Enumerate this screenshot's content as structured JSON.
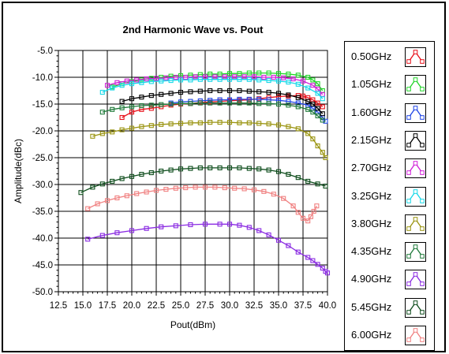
{
  "chart_data": {
    "type": "line",
    "title": "2nd Harmonic Wave vs. Pout",
    "xlabel": "Pout(dBm)",
    "ylabel": "Amplitude(dBc)",
    "xlim": [
      12.5,
      40.0
    ],
    "ylim": [
      -50.0,
      -5.0
    ],
    "x_ticks": [
      "12.5",
      "15.0",
      "17.5",
      "20.0",
      "22.5",
      "25.0",
      "27.5",
      "30.0",
      "32.5",
      "35.0",
      "37.5",
      "40.0"
    ],
    "y_ticks": [
      "-5.0",
      "-10.0",
      "-15.0",
      "-20.0",
      "-25.0",
      "-30.0",
      "-35.0",
      "-40.0",
      "-45.0",
      "-50.0"
    ],
    "grid": true,
    "legend_position": "right",
    "series": [
      {
        "name": "0.50GHz",
        "color": "#e8101a",
        "points": [
          [
            19.0,
            -17.5
          ],
          [
            20.0,
            -16.5
          ],
          [
            21.0,
            -16.0
          ],
          [
            22.0,
            -15.8
          ],
          [
            23.0,
            -15.5
          ],
          [
            24.0,
            -15.2
          ],
          [
            25.0,
            -15.0
          ],
          [
            26.0,
            -14.9
          ],
          [
            27.0,
            -14.7
          ],
          [
            28.0,
            -14.6
          ],
          [
            29.0,
            -14.5
          ],
          [
            30.0,
            -14.4
          ],
          [
            31.0,
            -14.3
          ],
          [
            32.0,
            -14.2
          ],
          [
            33.0,
            -14.0
          ],
          [
            34.0,
            -13.8
          ],
          [
            35.0,
            -13.6
          ],
          [
            36.0,
            -13.5
          ],
          [
            37.0,
            -13.4
          ],
          [
            37.5,
            -13.5
          ],
          [
            38.0,
            -13.8
          ],
          [
            38.5,
            -14.2
          ],
          [
            39.0,
            -14.8
          ],
          [
            39.5,
            -15.5
          ]
        ]
      },
      {
        "name": "1.05GHz",
        "color": "#22d42a",
        "points": [
          [
            18.0,
            -11.8
          ],
          [
            19.0,
            -11.2
          ],
          [
            20.0,
            -10.8
          ],
          [
            21.0,
            -10.5
          ],
          [
            22.0,
            -10.2
          ],
          [
            23.0,
            -10.0
          ],
          [
            24.0,
            -9.8
          ],
          [
            25.0,
            -9.7
          ],
          [
            26.0,
            -9.6
          ],
          [
            27.0,
            -9.5
          ],
          [
            28.0,
            -9.4
          ],
          [
            29.0,
            -9.4
          ],
          [
            30.0,
            -9.3
          ],
          [
            31.0,
            -9.3
          ],
          [
            32.0,
            -9.2
          ],
          [
            33.0,
            -9.2
          ],
          [
            34.0,
            -9.2
          ],
          [
            35.0,
            -9.3
          ],
          [
            36.0,
            -9.4
          ],
          [
            37.0,
            -9.6
          ],
          [
            38.0,
            -10.0
          ],
          [
            38.5,
            -10.5
          ],
          [
            39.0,
            -11.2
          ],
          [
            39.5,
            -12.5
          ]
        ]
      },
      {
        "name": "1.60GHz",
        "color": "#1f45e6",
        "points": [
          [
            24.0,
            -14.8
          ],
          [
            25.0,
            -14.6
          ],
          [
            26.0,
            -14.5
          ],
          [
            27.0,
            -14.4
          ],
          [
            28.0,
            -14.3
          ],
          [
            29.0,
            -14.2
          ],
          [
            30.0,
            -14.2
          ],
          [
            31.0,
            -14.1
          ],
          [
            32.0,
            -14.1
          ],
          [
            33.0,
            -14.1
          ],
          [
            34.0,
            -14.2
          ],
          [
            35.0,
            -14.3
          ],
          [
            36.0,
            -14.5
          ],
          [
            37.0,
            -14.8
          ],
          [
            38.0,
            -15.2
          ],
          [
            38.5,
            -15.8
          ],
          [
            39.0,
            -16.5
          ],
          [
            39.5,
            -17.5
          ],
          [
            39.8,
            -18.2
          ]
        ]
      },
      {
        "name": "2.15GHz",
        "color": "#000000",
        "points": [
          [
            19.0,
            -14.5
          ],
          [
            20.0,
            -14.0
          ],
          [
            21.0,
            -13.7
          ],
          [
            22.0,
            -13.4
          ],
          [
            23.0,
            -13.2
          ],
          [
            24.0,
            -13.0
          ],
          [
            25.0,
            -12.8
          ],
          [
            26.0,
            -12.7
          ],
          [
            27.0,
            -12.6
          ],
          [
            28.0,
            -12.5
          ],
          [
            29.0,
            -12.5
          ],
          [
            30.0,
            -12.5
          ],
          [
            31.0,
            -12.5
          ],
          [
            32.0,
            -12.6
          ],
          [
            33.0,
            -12.7
          ],
          [
            34.0,
            -12.8
          ],
          [
            35.0,
            -13.0
          ],
          [
            36.0,
            -13.3
          ],
          [
            37.0,
            -13.8
          ],
          [
            38.0,
            -14.5
          ],
          [
            38.5,
            -15.0
          ],
          [
            39.0,
            -15.8
          ],
          [
            39.5,
            -16.8
          ]
        ]
      },
      {
        "name": "2.70GHz",
        "color": "#d020d8",
        "points": [
          [
            17.5,
            -11.5
          ],
          [
            18.5,
            -11.0
          ],
          [
            19.5,
            -10.7
          ],
          [
            20.5,
            -10.5
          ],
          [
            21.5,
            -10.3
          ],
          [
            22.5,
            -10.2
          ],
          [
            23.5,
            -10.1
          ],
          [
            24.5,
            -10.0
          ],
          [
            25.5,
            -10.0
          ],
          [
            26.5,
            -9.9
          ],
          [
            27.5,
            -9.9
          ],
          [
            28.5,
            -9.9
          ],
          [
            29.5,
            -9.9
          ],
          [
            30.5,
            -9.9
          ],
          [
            31.5,
            -9.9
          ],
          [
            32.5,
            -9.9
          ],
          [
            33.5,
            -10.0
          ],
          [
            34.5,
            -10.0
          ],
          [
            35.5,
            -10.1
          ],
          [
            36.5,
            -10.3
          ],
          [
            37.5,
            -10.7
          ],
          [
            38.5,
            -11.5
          ],
          [
            39.0,
            -12.2
          ],
          [
            39.5,
            -13.2
          ]
        ]
      },
      {
        "name": "3.25GHz",
        "color": "#18d8e8",
        "points": [
          [
            17.0,
            -12.8
          ],
          [
            18.0,
            -12.0
          ],
          [
            19.0,
            -11.5
          ],
          [
            20.0,
            -11.2
          ],
          [
            21.0,
            -11.0
          ],
          [
            22.0,
            -10.8
          ],
          [
            23.0,
            -10.7
          ],
          [
            24.0,
            -10.6
          ],
          [
            25.0,
            -10.5
          ],
          [
            26.0,
            -10.5
          ],
          [
            27.0,
            -10.4
          ],
          [
            28.0,
            -10.4
          ],
          [
            29.0,
            -10.4
          ],
          [
            30.0,
            -10.4
          ],
          [
            31.0,
            -10.4
          ],
          [
            32.0,
            -10.4
          ],
          [
            33.0,
            -10.5
          ],
          [
            34.0,
            -10.6
          ],
          [
            35.0,
            -10.7
          ],
          [
            36.0,
            -10.9
          ],
          [
            37.0,
            -11.3
          ],
          [
            38.0,
            -12.0
          ],
          [
            39.0,
            -13.0
          ],
          [
            39.5,
            -14.0
          ]
        ]
      },
      {
        "name": "3.80GHz",
        "color": "#9a9410",
        "points": [
          [
            16.0,
            -21.0
          ],
          [
            17.0,
            -20.5
          ],
          [
            18.0,
            -20.2
          ],
          [
            19.0,
            -19.8
          ],
          [
            20.0,
            -19.5
          ],
          [
            21.0,
            -19.2
          ],
          [
            22.0,
            -19.0
          ],
          [
            23.0,
            -18.8
          ],
          [
            24.0,
            -18.7
          ],
          [
            25.0,
            -18.6
          ],
          [
            26.0,
            -18.5
          ],
          [
            27.0,
            -18.5
          ],
          [
            28.0,
            -18.4
          ],
          [
            29.0,
            -18.4
          ],
          [
            30.0,
            -18.4
          ],
          [
            31.0,
            -18.5
          ],
          [
            32.0,
            -18.5
          ],
          [
            33.0,
            -18.6
          ],
          [
            34.0,
            -18.7
          ],
          [
            35.0,
            -18.9
          ],
          [
            36.0,
            -19.2
          ],
          [
            37.0,
            -19.6
          ],
          [
            38.0,
            -20.5
          ],
          [
            38.5,
            -21.5
          ],
          [
            39.0,
            -22.8
          ],
          [
            39.5,
            -24.0
          ],
          [
            39.8,
            -25.0
          ]
        ]
      },
      {
        "name": "4.35GHz",
        "color": "#1f7a3a",
        "points": [
          [
            17.0,
            -16.5
          ],
          [
            18.0,
            -16.0
          ],
          [
            19.0,
            -15.7
          ],
          [
            20.0,
            -15.5
          ],
          [
            21.0,
            -15.3
          ],
          [
            22.0,
            -15.2
          ],
          [
            23.0,
            -15.1
          ],
          [
            24.0,
            -15.0
          ],
          [
            25.0,
            -14.9
          ],
          [
            26.0,
            -14.9
          ],
          [
            27.0,
            -14.8
          ],
          [
            28.0,
            -14.8
          ],
          [
            29.0,
            -14.8
          ],
          [
            30.0,
            -14.8
          ],
          [
            31.0,
            -14.8
          ],
          [
            32.0,
            -14.8
          ],
          [
            33.0,
            -14.9
          ],
          [
            34.0,
            -14.9
          ],
          [
            35.0,
            -15.0
          ],
          [
            36.0,
            -15.2
          ],
          [
            37.0,
            -15.5
          ],
          [
            38.0,
            -16.0
          ],
          [
            38.5,
            -16.5
          ],
          [
            39.0,
            -17.2
          ],
          [
            39.5,
            -18.0
          ]
        ]
      },
      {
        "name": "4.90GHz",
        "color": "#8a2be2",
        "points": [
          [
            15.5,
            -40.2
          ],
          [
            17.0,
            -39.5
          ],
          [
            18.5,
            -39.0
          ],
          [
            20.0,
            -38.6
          ],
          [
            21.5,
            -38.2
          ],
          [
            23.0,
            -37.9
          ],
          [
            24.5,
            -37.7
          ],
          [
            26.0,
            -37.5
          ],
          [
            27.5,
            -37.4
          ],
          [
            29.0,
            -37.4
          ],
          [
            30.0,
            -37.4
          ],
          [
            31.0,
            -37.6
          ],
          [
            32.0,
            -38.0
          ],
          [
            33.0,
            -38.6
          ],
          [
            34.0,
            -39.4
          ],
          [
            35.0,
            -40.4
          ],
          [
            36.0,
            -41.4
          ],
          [
            37.0,
            -42.6
          ],
          [
            38.0,
            -43.6
          ],
          [
            38.5,
            -44.2
          ],
          [
            39.0,
            -44.9
          ],
          [
            39.5,
            -45.6
          ],
          [
            39.8,
            -46.2
          ],
          [
            40.0,
            -46.5
          ]
        ]
      },
      {
        "name": "5.45GHz",
        "color": "#0e4d1c",
        "points": [
          [
            14.8,
            -31.5
          ],
          [
            16.0,
            -30.5
          ],
          [
            17.0,
            -29.9
          ],
          [
            18.0,
            -29.4
          ],
          [
            19.0,
            -28.9
          ],
          [
            20.0,
            -28.5
          ],
          [
            21.0,
            -28.1
          ],
          [
            22.0,
            -27.8
          ],
          [
            23.0,
            -27.5
          ],
          [
            24.0,
            -27.3
          ],
          [
            25.0,
            -27.1
          ],
          [
            26.0,
            -27.0
          ],
          [
            27.0,
            -26.9
          ],
          [
            28.0,
            -26.9
          ],
          [
            29.0,
            -26.9
          ],
          [
            30.0,
            -26.9
          ],
          [
            31.0,
            -26.9
          ],
          [
            32.0,
            -27.0
          ],
          [
            33.0,
            -27.1
          ],
          [
            34.0,
            -27.3
          ],
          [
            35.0,
            -27.6
          ],
          [
            36.0,
            -28.1
          ],
          [
            37.0,
            -28.7
          ],
          [
            38.0,
            -29.4
          ],
          [
            39.0,
            -29.9
          ],
          [
            39.8,
            -30.3
          ]
        ]
      },
      {
        "name": "6.00GHz",
        "color": "#f08080",
        "points": [
          [
            15.5,
            -34.5
          ],
          [
            16.5,
            -33.6
          ],
          [
            17.5,
            -33.0
          ],
          [
            18.5,
            -32.5
          ],
          [
            19.5,
            -32.1
          ],
          [
            20.5,
            -31.7
          ],
          [
            21.5,
            -31.4
          ],
          [
            22.5,
            -31.1
          ],
          [
            23.5,
            -30.9
          ],
          [
            24.5,
            -30.7
          ],
          [
            25.5,
            -30.6
          ],
          [
            26.5,
            -30.5
          ],
          [
            27.5,
            -30.5
          ],
          [
            28.5,
            -30.5
          ],
          [
            29.5,
            -30.6
          ],
          [
            30.5,
            -30.7
          ],
          [
            31.5,
            -30.8
          ],
          [
            32.5,
            -31.0
          ],
          [
            33.5,
            -31.3
          ],
          [
            34.5,
            -31.8
          ],
          [
            35.5,
            -32.6
          ],
          [
            36.5,
            -34.0
          ],
          [
            37.0,
            -35.2
          ],
          [
            37.5,
            -36.3
          ],
          [
            38.0,
            -36.8
          ],
          [
            38.3,
            -36.0
          ],
          [
            38.6,
            -35.0
          ],
          [
            38.9,
            -34.0
          ]
        ]
      }
    ]
  }
}
